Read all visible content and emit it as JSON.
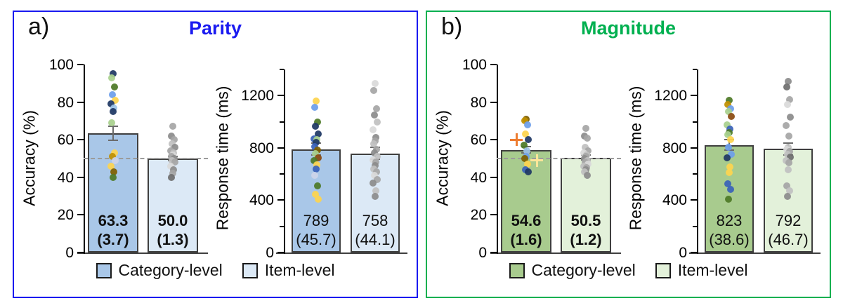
{
  "palette": {
    "navy": "#1f3864",
    "blue": "#3a62b8",
    "cornflower": "#6d9eeb",
    "ltblue": "#9dc3e6",
    "lavender": "#ccd4e8",
    "ltgreen": "#a9d18e",
    "dkgreen": "#4e7a27",
    "yellow": "#fdd44f",
    "dkyellow": "#bf9000",
    "olive": "#7f6000",
    "brown": "#8a4a10",
    "g1": "#6f6f6f",
    "g2": "#8c8c8c",
    "g3": "#a6a6a6",
    "g4": "#c1c1c1",
    "g5": "#d9d9d9"
  },
  "panels": [
    {
      "label": "a)",
      "accent": "#1a1af0",
      "legend": [
        {
          "label": "Category-level",
          "color": "#a9c7e8"
        },
        {
          "label": "Item-level",
          "color": "#dce9f6"
        }
      ]
    },
    {
      "label": "b)",
      "accent": "#00b050",
      "legend": [
        {
          "label": "Category-level",
          "color": "#a8cb8e"
        },
        {
          "label": "Item-level",
          "color": "#e3f1da"
        }
      ]
    }
  ],
  "chart_data": [
    {
      "panel": "a",
      "title": "Parity",
      "title_color": "#1a1af0",
      "charts": [
        {
          "type": "bar+scatter",
          "ylabel": "Accuracy (%)",
          "ylim": [
            0,
            100
          ],
          "yticks": [
            0,
            20,
            40,
            60,
            80,
            100
          ],
          "minor_yticks": [],
          "reference_line": 50,
          "categories": [
            "Category-level",
            "Item-level"
          ],
          "bars": [
            {
              "category": "Category-level",
              "mean": 63.3,
              "se": 3.7,
              "label": "63.3",
              "se_label": "(3.7)",
              "fill": "#a9c7e8",
              "points": [
                [
                  95,
                  "navy"
                ],
                [
                  93,
                  "ltgreen"
                ],
                [
                  88,
                  "dkgreen"
                ],
                [
                  84,
                  "cornflower"
                ],
                [
                  81,
                  "yellow"
                ],
                [
                  79,
                  "navy"
                ],
                [
                  77,
                  "ltblue"
                ],
                [
                  75,
                  "navy"
                ],
                [
                  69,
                  "ltgreen"
                ],
                [
                  53,
                  "yellow"
                ],
                [
                  51,
                  "dkyellow"
                ],
                [
                  49,
                  "lavender"
                ],
                [
                  46,
                  "yellow"
                ],
                [
                  43,
                  "olive"
                ],
                [
                  40,
                  "dkgreen"
                ]
              ],
              "markers": []
            },
            {
              "category": "Item-level",
              "mean": 50.0,
              "se": 1.3,
              "label": "50.0",
              "se_label": "(1.3)",
              "fill": "#dce9f6",
              "points": [
                [
                  67,
                  "g3"
                ],
                [
                  62,
                  "g2"
                ],
                [
                  60,
                  "g3"
                ],
                [
                  58,
                  "g4"
                ],
                [
                  56,
                  "g2"
                ],
                [
                  54,
                  "g3"
                ],
                [
                  53,
                  "g4"
                ],
                [
                  52,
                  "g5"
                ],
                [
                  51,
                  "g3"
                ],
                [
                  50,
                  "g2"
                ],
                [
                  49,
                  "g4"
                ],
                [
                  48,
                  "g3"
                ],
                [
                  46,
                  "g5"
                ],
                [
                  44,
                  "g2"
                ],
                [
                  42,
                  "g3"
                ],
                [
                  40,
                  "g1"
                ]
              ],
              "markers": []
            }
          ]
        },
        {
          "type": "bar+scatter",
          "ylabel": "Response time (ms)",
          "ylim": [
            0,
            1400
          ],
          "yticks": [
            0,
            400,
            800,
            1200
          ],
          "minor_yticks": [
            200,
            600,
            1000,
            1400
          ],
          "reference_line": null,
          "categories": [
            "Category-level",
            "Item-level"
          ],
          "bars": [
            {
              "category": "Category-level",
              "mean": 789,
              "se": 45.7,
              "label": "789",
              "se_label": "(45.7)",
              "fill": "#a9c7e8",
              "points": [
                [
                  1160,
                  "yellow"
                ],
                [
                  1110,
                  "cornflower"
                ],
                [
                  1000,
                  "dkgreen"
                ],
                [
                  965,
                  "navy"
                ],
                [
                  905,
                  "navy"
                ],
                [
                  870,
                  "blue"
                ],
                [
                  865,
                  "ltgreen"
                ],
                [
                  840,
                  "navy"
                ],
                [
                  810,
                  "blue"
                ],
                [
                  785,
                  "olive"
                ],
                [
                  755,
                  "ltgreen"
                ],
                [
                  725,
                  "brown"
                ],
                [
                  700,
                  "dkgreen"
                ],
                [
                  670,
                  "yellow"
                ],
                [
                  640,
                  "blue"
                ],
                [
                  590,
                  "lavender"
                ],
                [
                  510,
                  "dkgreen"
                ],
                [
                  445,
                  "yellow"
                ],
                [
                  410,
                  "yellow"
                ]
              ],
              "markers": []
            },
            {
              "category": "Item-level",
              "mean": 758,
              "se": 44.1,
              "label": "758",
              "se_label": "(44.1)",
              "fill": "#dce9f6",
              "points": [
                [
                  1290,
                  "g5"
                ],
                [
                  1240,
                  "g3"
                ],
                [
                  1100,
                  "g3"
                ],
                [
                  1050,
                  "g2"
                ],
                [
                  1000,
                  "g4"
                ],
                [
                  940,
                  "g5"
                ],
                [
                  880,
                  "g2"
                ],
                [
                  855,
                  "g3"
                ],
                [
                  830,
                  "g4"
                ],
                [
                  790,
                  "g3"
                ],
                [
                  760,
                  "g2"
                ],
                [
                  735,
                  "g4"
                ],
                [
                  710,
                  "g5"
                ],
                [
                  690,
                  "g3"
                ],
                [
                  665,
                  "g2"
                ],
                [
                  640,
                  "g4"
                ],
                [
                  615,
                  "g3"
                ],
                [
                  590,
                  "g5"
                ],
                [
                  560,
                  "g3"
                ],
                [
                  530,
                  "g2"
                ],
                [
                  470,
                  "g4"
                ],
                [
                  430,
                  "g2"
                ]
              ],
              "markers": []
            }
          ]
        }
      ]
    },
    {
      "panel": "b",
      "title": "Magnitude",
      "title_color": "#00b050",
      "charts": [
        {
          "type": "bar+scatter",
          "ylabel": "Accuracy (%)",
          "ylim": [
            0,
            100
          ],
          "yticks": [
            0,
            20,
            40,
            60,
            80,
            100
          ],
          "minor_yticks": [],
          "reference_line": 50,
          "categories": [
            "Category-level",
            "Item-level"
          ],
          "bars": [
            {
              "category": "Category-level",
              "mean": 54.6,
              "se": 1.6,
              "label": "54.6",
              "se_label": "(1.6)",
              "fill": "#a8cb8e",
              "points": [
                [
                  71,
                  "olive"
                ],
                [
                  70,
                  "dkyellow"
                ],
                [
                  68,
                  "cornflower"
                ],
                [
                  63,
                  "yellow"
                ],
                [
                  60,
                  "navy"
                ],
                [
                  57,
                  "dkgreen"
                ],
                [
                  54,
                  "ltblue"
                ],
                [
                  51,
                  "cornflower"
                ],
                [
                  50,
                  "olive"
                ],
                [
                  47,
                  "yellow"
                ],
                [
                  44,
                  "blue"
                ],
                [
                  43,
                  "navy"
                ]
              ],
              "markers": [
                {
                  "v": 60,
                  "dx": -14,
                  "color": "#ed7d31",
                  "shape": "plus"
                },
                {
                  "v": 49,
                  "dx": 15,
                  "color": "#ffe699",
                  "shape": "plus"
                }
              ]
            },
            {
              "category": "Item-level",
              "mean": 50.5,
              "se": 1.2,
              "label": "50.5",
              "se_label": "(1.2)",
              "fill": "#e3f1da",
              "points": [
                [
                  66,
                  "g3"
                ],
                [
                  62,
                  "g2"
                ],
                [
                  61,
                  "g3"
                ],
                [
                  56,
                  "g4"
                ],
                [
                  54,
                  "g3"
                ],
                [
                  53,
                  "g5"
                ],
                [
                  52,
                  "g4"
                ],
                [
                  51,
                  "g3"
                ],
                [
                  50,
                  "g2"
                ],
                [
                  49,
                  "g4"
                ],
                [
                  48,
                  "g3"
                ],
                [
                  47,
                  "g5"
                ],
                [
                  46,
                  "g4"
                ],
                [
                  45,
                  "g3"
                ],
                [
                  44,
                  "g2"
                ],
                [
                  43,
                  "g4"
                ],
                [
                  41,
                  "g2"
                ]
              ],
              "markers": []
            }
          ]
        },
        {
          "type": "bar+scatter",
          "ylabel": "Response time (ms)",
          "ylim": [
            0,
            1400
          ],
          "yticks": [
            0,
            400,
            800,
            1200
          ],
          "minor_yticks": [
            200,
            600,
            1000,
            1400
          ],
          "reference_line": null,
          "categories": [
            "Category-level",
            "Item-level"
          ],
          "bars": [
            {
              "category": "Category-level",
              "mean": 823,
              "se": 38.6,
              "label": "823",
              "se_label": "(38.6)",
              "fill": "#a8cb8e",
              "points": [
                [
                  1165,
                  "dkgreen"
                ],
                [
                  1130,
                  "dkyellow"
                ],
                [
                  1100,
                  "cornflower"
                ],
                [
                  1080,
                  "ltgreen"
                ],
                [
                  1040,
                  "brown"
                ],
                [
                  975,
                  "ltgreen"
                ],
                [
                  945,
                  "blue"
                ],
                [
                  915,
                  "dkgreen"
                ],
                [
                  900,
                  "ltgreen"
                ],
                [
                  865,
                  "yellow"
                ],
                [
                  805,
                  "cornflower"
                ],
                [
                  750,
                  "cornflower"
                ],
                [
                  725,
                  "navy"
                ],
                [
                  655,
                  "yellow"
                ],
                [
                  610,
                  "yellow"
                ],
                [
                  525,
                  "blue"
                ],
                [
                  485,
                  "blue"
                ],
                [
                  410,
                  "dkgreen"
                ]
              ],
              "markers": []
            },
            {
              "category": "Item-level",
              "mean": 792,
              "se": 46.7,
              "label": "792",
              "se_label": "(46.7)",
              "fill": "#e3f1da",
              "points": [
                [
                  1310,
                  "g2"
                ],
                [
                  1265,
                  "g1"
                ],
                [
                  1170,
                  "g3"
                ],
                [
                  1130,
                  "g5"
                ],
                [
                  1035,
                  "g2"
                ],
                [
                  970,
                  "g3"
                ],
                [
                  890,
                  "g3"
                ],
                [
                  805,
                  "g4"
                ],
                [
                  790,
                  "g5"
                ],
                [
                  770,
                  "g3"
                ],
                [
                  750,
                  "g4"
                ],
                [
                  730,
                  "g1"
                ],
                [
                  705,
                  "g4"
                ],
                [
                  685,
                  "g3"
                ],
                [
                  635,
                  "g4"
                ],
                [
                  510,
                  "g3"
                ],
                [
                  470,
                  "g4"
                ],
                [
                  430,
                  "g2"
                ]
              ],
              "markers": []
            }
          ]
        }
      ]
    }
  ]
}
